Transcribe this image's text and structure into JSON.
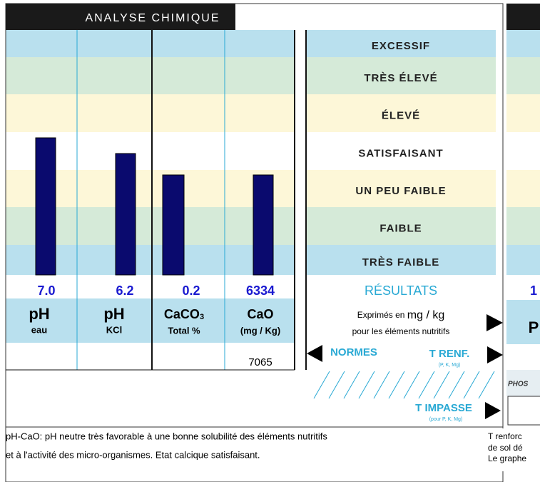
{
  "header": {
    "title": "ANALYSE CHIMIQUE"
  },
  "levels": [
    "EXCESSIF",
    "TRÈS ÉLEVÉ",
    "ÉLEVÉ",
    "SATISFAISANT",
    "UN PEU FAIBLE",
    "FAIBLE",
    "TRÈS FAIBLE"
  ],
  "results": [
    {
      "value": "7.0",
      "name": "pH",
      "sub": "eau"
    },
    {
      "value": "6.2",
      "name": "pH",
      "sub": "KCl"
    },
    {
      "value": "0.2",
      "name": "CaCO",
      "name_sub": "3",
      "sub": "Total %"
    },
    {
      "value": "6334",
      "name": "CaO",
      "sub": "(mg / Kg)",
      "norm": "7065"
    }
  ],
  "legend": {
    "title": "RÉSULTATS",
    "line1_a": "Exprimés en ",
    "line1_b": "mg / kg",
    "line2": "pour les éléments nutritifs",
    "normes": "NORMES",
    "trenf": "T RENF.",
    "trenf_sub": "(P, K, Mg)",
    "timpasse": "T IMPASSE",
    "timpasse_sub": "(pour P, K, Mg)"
  },
  "right_panel": {
    "value": "1",
    "name": "P",
    "label": "PHOS"
  },
  "comment": {
    "lines": [
      "pH-CaO: pH neutre très favorable à une bonne solubilité des éléments nutritifs",
      "et à l'activité des micro-organismes. Etat calcique satisfaisant."
    ]
  },
  "side_comment": {
    "lines": [
      "T renforc",
      "de sol dé",
      "Le graphe"
    ]
  }
}
